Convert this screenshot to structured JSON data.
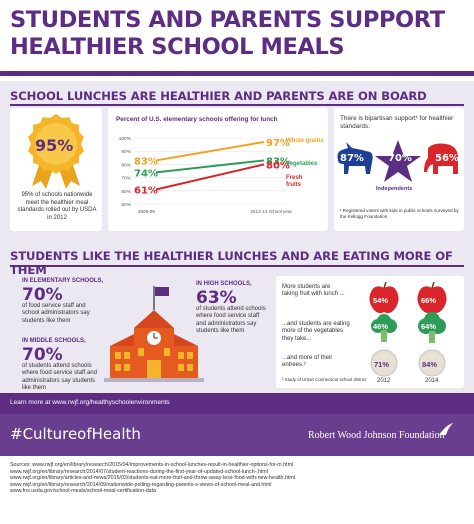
{
  "header": {
    "title_line1": "STUDENTS AND PARENTS SUPPORT",
    "title_line2": "HEALTHIER SCHOOL MEALS"
  },
  "section1": {
    "heading": "SCHOOL LUNCHES ARE HEALTHIER AND PARENTS ARE ON BOARD",
    "ribbon": {
      "pct": "95%",
      "text": "95% of schools nationwide meet the healthier meal standards rolled out by USDA in 2012"
    },
    "chart": {
      "title": "Percent of U.S. elementary schools offering for lunch",
      "labels_left": [
        "83%",
        "74%",
        "61%"
      ],
      "labels_right": [
        "97%",
        "83%",
        "80%"
      ],
      "series_names": [
        "Whole grains",
        "Vegetables",
        "Fresh fruits"
      ]
    },
    "bipartisan": {
      "text": "There is bipartisan support¹ for healthier standards:",
      "dem": "87%",
      "ind": "70%",
      "ind_label": "Independents",
      "rep": "56%",
      "footnote": "¹ Registered voters with kids in public schools surveyed by the Kellogg Foundation"
    }
  },
  "chart_data": {
    "type": "line",
    "title": "Percent of U.S. elementary schools offering for lunch",
    "x": [
      "2006-09",
      "2013-14 school year"
    ],
    "series": [
      {
        "name": "Whole grains",
        "values": [
          83,
          97
        ],
        "color": "#f2a21f"
      },
      {
        "name": "Vegetables",
        "values": [
          74,
          83
        ],
        "color": "#2e9c58"
      },
      {
        "name": "Fresh fruits",
        "values": [
          61,
          80
        ],
        "color": "#d9262a"
      }
    ],
    "yticks": [
      "100%",
      "90%",
      "80%",
      "70%",
      "60%",
      "50%"
    ],
    "ylim": [
      50,
      100
    ],
    "xlabel": "",
    "ylabel": ""
  },
  "section2": {
    "heading": "STUDENTS LIKE THE HEALTHIER LUNCHES AND ARE EATING MORE OF THEM",
    "elementary": {
      "head": "IN ELEMENTARY SCHOOLS,",
      "pct": "70%",
      "text": "of food service staff and school administrators say students like them"
    },
    "middle": {
      "head": "IN MIDDLE SCHOOLS,",
      "pct": "70%",
      "text": "of students attend schools where food service staff and administrators say students like them"
    },
    "high": {
      "head": "IN HIGH SCHOOLS,",
      "pct": "63%",
      "text": "of students attend schools where food service staff and administrators say students like them"
    },
    "eating": {
      "fruit_text": "More students are taking fruit with lunch ...",
      "veg_text": "...and students are eating more of the vegetables they take...",
      "entree_text": "...and more of their entrees.²",
      "footnote": "² Study of Urban Connecticut school district",
      "fruit": [
        "54%",
        "66%"
      ],
      "veg": [
        "46%",
        "64%"
      ],
      "entree": [
        "71%",
        "84%"
      ],
      "years": [
        "2012",
        "2014"
      ]
    }
  },
  "footer": {
    "learn": "Learn more at www.rwjf.org/healthyschoolenvironments",
    "hashtag": "#CultureofHealth",
    "org": "Robert Wood Johnson Foundation",
    "sources": [
      "Sources: www.rwjf.org/en/library/research/2015/04/improvements-in-school-lunches-result-in-healthier-options-for-m.html",
      "www.rwjf.org/en/library/research/2014/07/student-reactions-during-the-first-year-of-updated-school-lunch-.html",
      "www.rwjf.org/en/library/articles-and-news/2015/03/students-eat-more-fruit-and-throw-away-less-food-with-new-health.html",
      "www.rwjf.org/en/library/research/2014/09/nationwide-polling-regarding-parents-s-views-of-school-meal-and.html",
      "www.fns.usda.gov/school-meals/school-meal-certification-data"
    ]
  }
}
